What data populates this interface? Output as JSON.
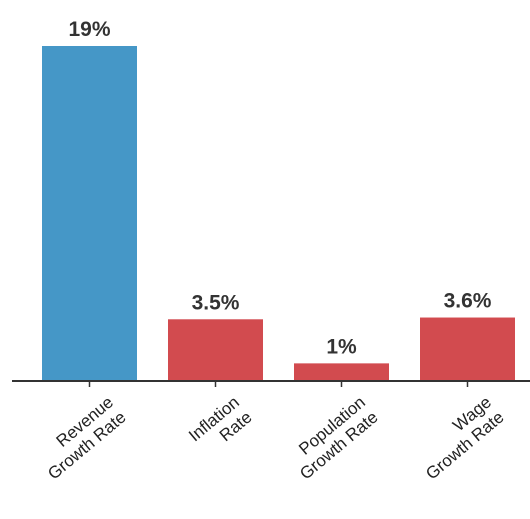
{
  "chart_data": {
    "type": "bar",
    "categories": [
      [
        "Revenue",
        "Growth Rate"
      ],
      [
        "Inflation",
        "Rate"
      ],
      [
        "Population",
        "Growth Rate"
      ],
      [
        "Wage",
        "Growth Rate"
      ]
    ],
    "values": [
      19,
      3.5,
      1,
      3.6
    ],
    "data_labels": [
      "19%",
      "3.5%",
      "1%",
      "3.6%"
    ],
    "unit": "%",
    "ylim": [
      0,
      19
    ],
    "grid": false,
    "colors": [
      "#4597c7",
      "#d24b4f",
      "#d24b4f",
      "#d24b4f"
    ],
    "axis_color": "#333333"
  }
}
